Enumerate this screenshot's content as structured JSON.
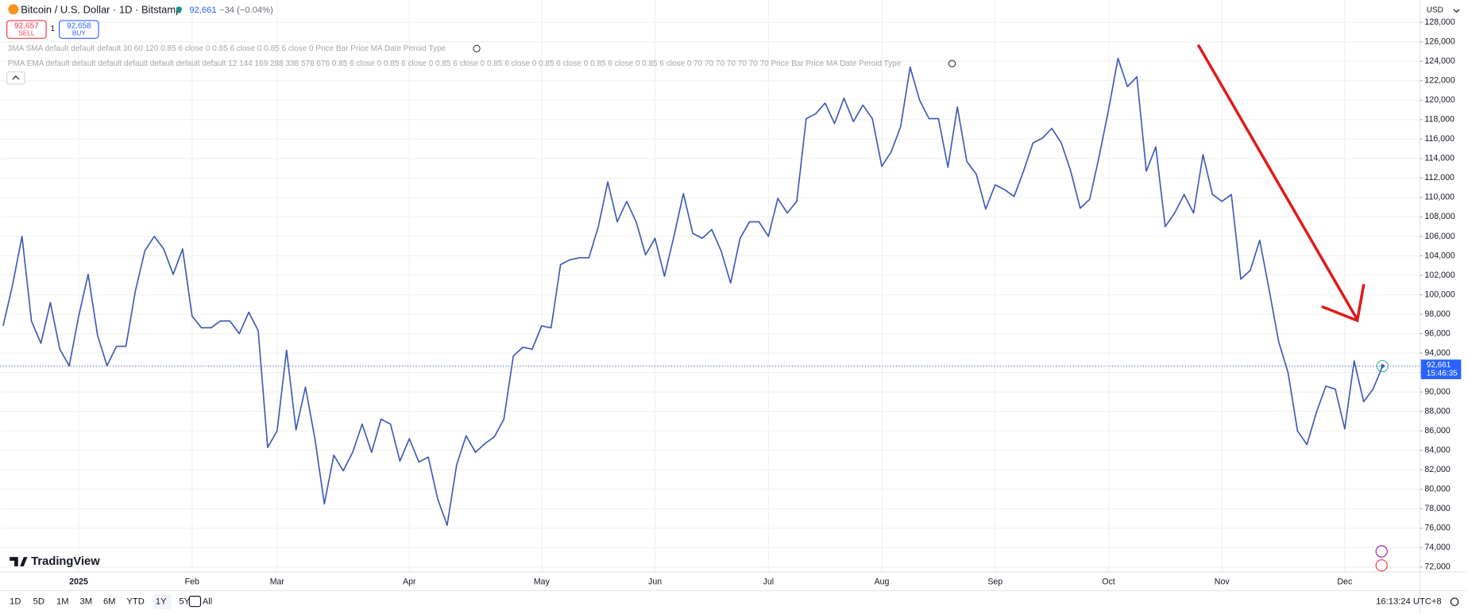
{
  "header": {
    "title": "Bitcoin / U.S. Dollar · 1D · Bitstamp",
    "price": "92,661",
    "change": "−34 (−0.04%)",
    "sell_price": "92,657",
    "sell_label": "SELL",
    "quantity": "1",
    "buy_price": "92,658",
    "buy_label": "BUY",
    "indicators": [
      "3MA SMA default default default 30 60 120 0.85 6 close 0 0.85 6 close 0 0.85 6 close 0 Price Bar Price MA Date Peroid Type",
      "PMA EMA default default default default default default default 12 144 169 288 338 576 676 0.85 6 close 0 0.85 6 close 0 0.85 6 close 0 0.85 6 close 0 0.85 6 close 0 0.85 6 close 0 0.85 6 close 0 70 70 70 70 70 70 70 Price Bar Price MA Date Peroid Type"
    ],
    "currency": "USD",
    "logo": "TradingView"
  },
  "toolbar": {
    "ranges": [
      "1D",
      "5D",
      "1M",
      "3M",
      "6M",
      "YTD",
      "1Y",
      "5Y",
      "All"
    ],
    "active": "1Y",
    "clock": "16:13:24 UTC+8"
  },
  "chart_data": {
    "type": "line",
    "color": "#3b5bb5",
    "grid": true,
    "categories": [
      null,
      null,
      null,
      null,
      null,
      null,
      null,
      null,
      "2025",
      null,
      null,
      null,
      null,
      null,
      null,
      null,
      null,
      null,
      null,
      null,
      "Feb",
      null,
      null,
      null,
      null,
      null,
      null,
      null,
      null,
      "Mar",
      null,
      null,
      null,
      null,
      null,
      null,
      null,
      null,
      null,
      null,
      null,
      null,
      null,
      "Apr",
      null,
      null,
      null,
      null,
      null,
      null,
      null,
      null,
      null,
      null,
      null,
      null,
      null,
      "May",
      null,
      null,
      null,
      null,
      null,
      null,
      null,
      null,
      null,
      null,
      null,
      "Jun",
      null,
      null,
      null,
      null,
      null,
      null,
      null,
      null,
      null,
      null,
      null,
      "Jul",
      null,
      null,
      null,
      null,
      null,
      null,
      null,
      null,
      null,
      null,
      null,
      "Aug",
      null,
      null,
      null,
      null,
      null,
      null,
      null,
      null,
      null,
      null,
      null,
      "Sep",
      null,
      null,
      null,
      null,
      null,
      null,
      null,
      null,
      null,
      null,
      null,
      "Oct",
      null,
      null,
      null,
      null,
      null,
      null,
      null,
      null,
      null,
      null,
      null,
      "Nov",
      null,
      null,
      null,
      null,
      null,
      null,
      null,
      null,
      null,
      null,
      null,
      null,
      "Dec",
      null,
      null,
      null,
      null
    ],
    "values": [
      96800,
      101000,
      106000,
      97300,
      95000,
      99200,
      94400,
      92700,
      97800,
      102100,
      95800,
      92700,
      94700,
      94700,
      100400,
      104500,
      106000,
      104700,
      102100,
      104700,
      97800,
      96600,
      96600,
      97300,
      97300,
      96000,
      98200,
      96300,
      84300,
      86000,
      94300,
      86100,
      90500,
      85200,
      78500,
      83500,
      81900,
      83800,
      86700,
      83800,
      87200,
      86700,
      82900,
      85200,
      82800,
      83300,
      79000,
      76300,
      82500,
      85500,
      83800,
      84700,
      85400,
      87200,
      93700,
      94600,
      94400,
      96800,
      96600,
      103100,
      103600,
      103800,
      103800,
      107000,
      111600,
      107500,
      109600,
      107500,
      104100,
      105800,
      101900,
      106000,
      110400,
      106300,
      105800,
      106700,
      104500,
      101200,
      105800,
      107500,
      107500,
      106000,
      109900,
      108400,
      109600,
      118100,
      118600,
      119700,
      117600,
      120200,
      117800,
      119500,
      118100,
      113200,
      114700,
      117300,
      123400,
      120000,
      118100,
      118100,
      113100,
      119300,
      113700,
      112400,
      108800,
      111300,
      110800,
      110100,
      112700,
      115600,
      116100,
      117100,
      115600,
      112700,
      108900,
      109800,
      114200,
      119000,
      124300,
      121400,
      122400,
      112700,
      115200,
      107000,
      108400,
      110300,
      108400,
      114400,
      110300,
      109600,
      110300,
      101600,
      102500,
      105600,
      100500,
      95200,
      92000,
      86000,
      84600,
      87900,
      90600,
      90300,
      86200,
      93200,
      89000,
      90300,
      92661
    ],
    "last_price": {
      "value": 92661,
      "label": "92,661"
    },
    "countdown": "15:46:35",
    "ylim": [
      71500,
      130300
    ],
    "yticks": [
      {
        "value": 72000,
        "label": "72,000"
      },
      {
        "value": 74000,
        "label": "74,000"
      },
      {
        "value": 76000,
        "label": "76,000"
      },
      {
        "value": 78000,
        "label": "78,000"
      },
      {
        "value": 80000,
        "label": "80,000"
      },
      {
        "value": 82000,
        "label": "82,000"
      },
      {
        "value": 84000,
        "label": "84,000"
      },
      {
        "value": 86000,
        "label": "86,000"
      },
      {
        "value": 88000,
        "label": "88,000"
      },
      {
        "value": 90000,
        "label": "90,000"
      },
      {
        "value": 92000,
        "label": "92,000"
      },
      {
        "value": 94000,
        "label": "94,000"
      },
      {
        "value": 96000,
        "label": "96,000"
      },
      {
        "value": 98000,
        "label": "98,000"
      },
      {
        "value": 100000,
        "label": "100,000"
      },
      {
        "value": 102000,
        "label": "102,000"
      },
      {
        "value": 104000,
        "label": "104,000"
      },
      {
        "value": 106000,
        "label": "106,000"
      },
      {
        "value": 108000,
        "label": "108,000"
      },
      {
        "value": 110000,
        "label": "110,000"
      },
      {
        "value": 112000,
        "label": "112,000"
      },
      {
        "value": 114000,
        "label": "114,000"
      },
      {
        "value": 116000,
        "label": "116,000"
      },
      {
        "value": 118000,
        "label": "118,000"
      },
      {
        "value": 120000,
        "label": "120,000"
      },
      {
        "value": 122000,
        "label": "122,000"
      },
      {
        "value": 124000,
        "label": "124,000"
      },
      {
        "value": 126000,
        "label": "126,000"
      },
      {
        "value": 128000,
        "label": "128,000"
      }
    ]
  }
}
